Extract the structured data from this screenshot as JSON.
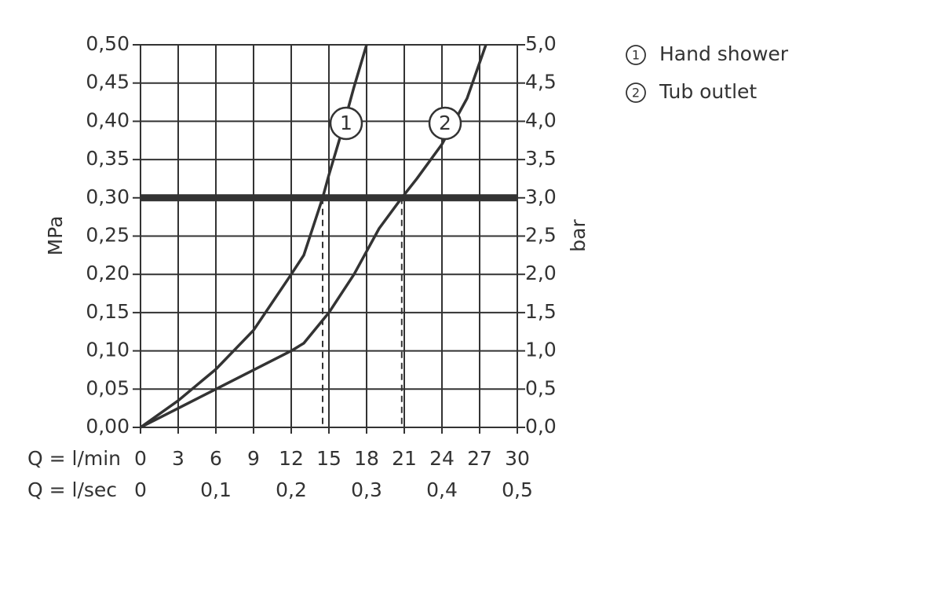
{
  "chart_data": {
    "type": "line",
    "xlabel": "Q = l/min",
    "x2label": "Q = l/sec",
    "ylabel": "MPa",
    "y2label": "bar",
    "xlim": [
      0,
      30
    ],
    "xticks": [
      0,
      3,
      6,
      9,
      12,
      15,
      18,
      21,
      24,
      27,
      30
    ],
    "x2lim": [
      0,
      0.5
    ],
    "x2ticks": [
      0,
      {
        "value": 0.1,
        "label": "0,1"
      },
      {
        "value": 0.2,
        "label": "0,2"
      },
      {
        "value": 0.3,
        "label": "0,3"
      },
      {
        "value": 0.4,
        "label": "0,4"
      },
      {
        "value": 0.5,
        "label": "0,5"
      }
    ],
    "ylim": [
      0,
      0.5
    ],
    "yticks": [
      {
        "value": 0,
        "label": "0,00"
      },
      {
        "value": 0.05,
        "label": "0,05"
      },
      {
        "value": 0.1,
        "label": "0,10"
      },
      {
        "value": 0.15,
        "label": "0,15"
      },
      {
        "value": 0.2,
        "label": "0,20"
      },
      {
        "value": 0.25,
        "label": "0,25"
      },
      {
        "value": 0.3,
        "label": "0,30"
      },
      {
        "value": 0.35,
        "label": "0,35"
      },
      {
        "value": 0.4,
        "label": "0,40"
      },
      {
        "value": 0.45,
        "label": "0,45"
      },
      {
        "value": 0.5,
        "label": "0,50"
      }
    ],
    "y2lim": [
      0,
      5
    ],
    "y2ticks": [
      {
        "value": 0,
        "label": "0,0"
      },
      {
        "value": 0.5,
        "label": "0,5"
      },
      {
        "value": 1,
        "label": "1,0"
      },
      {
        "value": 1.5,
        "label": "1,5"
      },
      {
        "value": 2,
        "label": "2,0"
      },
      {
        "value": 2.5,
        "label": "2,5"
      },
      {
        "value": 3,
        "label": "3,0"
      },
      {
        "value": 3.5,
        "label": "3,5"
      },
      {
        "value": 4,
        "label": "4,0"
      },
      {
        "value": 4.5,
        "label": "4,5"
      },
      {
        "value": 5,
        "label": "5,0"
      }
    ],
    "grid": true,
    "threshold": 0.3,
    "series": [
      {
        "name": "Hand shower",
        "label": "1",
        "color": "#333333",
        "x": [
          0,
          3,
          6,
          9,
          12,
          13,
          14.5,
          15,
          16,
          17,
          18
        ],
        "values": [
          0,
          0.035,
          0.076,
          0.127,
          0.2,
          0.225,
          0.3,
          0.33,
          0.385,
          0.445,
          0.5
        ]
      },
      {
        "name": "Tub outlet",
        "label": "2",
        "color": "#333333",
        "x": [
          0,
          3,
          6,
          9,
          12,
          13,
          15,
          17,
          19,
          20.8,
          22,
          24,
          26,
          27.5
        ],
        "values": [
          0,
          0.025,
          0.05,
          0.075,
          0.1,
          0.11,
          0.15,
          0.2,
          0.26,
          0.3,
          0.325,
          0.37,
          0.43,
          0.5
        ]
      }
    ]
  }
}
